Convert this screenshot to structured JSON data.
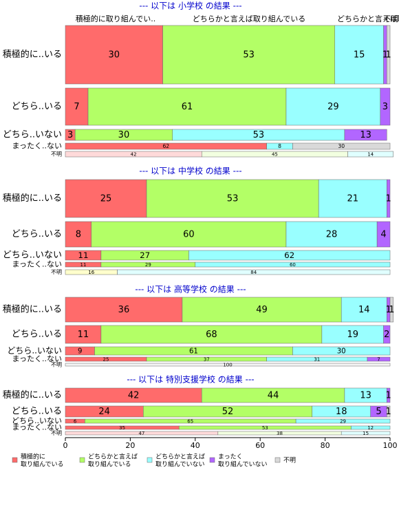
{
  "chart_data": {
    "type": "mosaic",
    "top_labels": [
      "積極的に取り組んでい..",
      "どちらかと言えば取り組んでいる",
      "どちらかと言えば取り組んでいない",
      "不明"
    ],
    "xlim": [
      0,
      100
    ],
    "xticks": [
      0,
      20,
      40,
      60,
      80,
      100
    ],
    "legend": [
      {
        "lines": [
          "積極的に",
          "取り組んでいる"
        ],
        "color": "#ff6b6b"
      },
      {
        "lines": [
          "どちらかと言えば",
          "取り組んでいる"
        ],
        "color": "#b3ff66"
      },
      {
        "lines": [
          "どちらかと言えば",
          "取り組んでいない"
        ],
        "color": "#99ffff"
      },
      {
        "lines": [
          "まったく",
          "取り組んでいない"
        ],
        "color": "#b266ff"
      },
      {
        "lines": [
          "不明"
        ],
        "color": "#d9d9d9"
      }
    ],
    "panels": [
      {
        "title": "--- 以下は 小学校 の結果 ---",
        "rows": [
          {
            "label": "積極的に..いる",
            "values": [
              30,
              53,
              15,
              1,
              1
            ],
            "colors": [
              "#ff6b6b",
              "#b3ff66",
              "#99ffff",
              "#b266ff",
              "#d9d9d9"
            ]
          },
          {
            "label": "どちら..いる",
            "values": [
              7,
              61,
              29,
              3
            ],
            "colors": [
              "#ff6b6b",
              "#b3ff66",
              "#99ffff",
              "#b266ff"
            ]
          },
          {
            "label": "どちら..いない",
            "values": [
              3,
              30,
              53,
              13
            ],
            "colors": [
              "#ff6b6b",
              "#b3ff66",
              "#99ffff",
              "#b266ff"
            ]
          },
          {
            "label": "まったく..ない",
            "values": [
              62,
              8,
              30
            ],
            "colors": [
              "#ff6b6b",
              "#99ffff",
              "#d9d9d9"
            ]
          },
          {
            "label": "不明",
            "values": [
              42,
              45,
              14
            ],
            "colors": [
              "#ffdada",
              "#f2ffe0",
              "#e0ffff"
            ]
          }
        ]
      },
      {
        "title": "--- 以下は 中学校 の結果 ---",
        "rows": [
          {
            "label": "積極的に..いる",
            "values": [
              25,
              53,
              21,
              1
            ],
            "colors": [
              "#ff6b6b",
              "#b3ff66",
              "#99ffff",
              "#b266ff"
            ]
          },
          {
            "label": "どちら..いる",
            "values": [
              8,
              60,
              28,
              4
            ],
            "colors": [
              "#ff6b6b",
              "#b3ff66",
              "#99ffff",
              "#b266ff"
            ]
          },
          {
            "label": "どちら..いない",
            "values": [
              11,
              27,
              62
            ],
            "colors": [
              "#ff6b6b",
              "#b3ff66",
              "#99ffff"
            ]
          },
          {
            "label": "まったく..ない",
            "values": [
              11,
              29,
              60
            ],
            "colors": [
              "#ff6b6b",
              "#b3ff66",
              "#99ffff"
            ]
          },
          {
            "label": "不明",
            "values": [
              16,
              84
            ],
            "colors": [
              "#ffffcc",
              "#e0ffff"
            ]
          }
        ]
      },
      {
        "title": "--- 以下は 高等学校 の結果 ---",
        "rows": [
          {
            "label": "積極的に..いる",
            "values": [
              36,
              49,
              14,
              1,
              1
            ],
            "colors": [
              "#ff6b6b",
              "#b3ff66",
              "#99ffff",
              "#b266ff",
              "#d9d9d9"
            ]
          },
          {
            "label": "どちら..いる",
            "values": [
              11,
              68,
              19,
              2
            ],
            "colors": [
              "#ff6b6b",
              "#b3ff66",
              "#99ffff",
              "#b266ff"
            ]
          },
          {
            "label": "どちら..いない",
            "values": [
              9,
              61,
              30
            ],
            "colors": [
              "#ff6b6b",
              "#b3ff66",
              "#99ffff"
            ]
          },
          {
            "label": "まったく..ない",
            "values": [
              25,
              37,
              31,
              7
            ],
            "colors": [
              "#ff6b6b",
              "#b3ff66",
              "#99ffff",
              "#b266ff"
            ]
          },
          {
            "label": "不明",
            "values": [
              100
            ],
            "colors": [
              "#f4f4f4"
            ]
          }
        ]
      },
      {
        "title": "--- 以下は 特別支援学校 の結果 ---",
        "rows": [
          {
            "label": "積極的に..いる",
            "values": [
              42,
              44,
              13,
              1
            ],
            "colors": [
              "#ff6b6b",
              "#b3ff66",
              "#99ffff",
              "#b266ff"
            ]
          },
          {
            "label": "どちら..いる",
            "values": [
              24,
              52,
              18,
              5,
              1
            ],
            "colors": [
              "#ff6b6b",
              "#b3ff66",
              "#99ffff",
              "#b266ff",
              "#d9d9d9"
            ]
          },
          {
            "label": "どちら..いない",
            "values": [
              6,
              65,
              29
            ],
            "colors": [
              "#ff6b6b",
              "#b3ff66",
              "#99ffff"
            ]
          },
          {
            "label": "まったく..ない",
            "values": [
              35,
              53,
              12
            ],
            "colors": [
              "#ff6b6b",
              "#b3ff66",
              "#99ffff"
            ]
          },
          {
            "label": "不明",
            "values": [
              47,
              38,
              15
            ],
            "colors": [
              "#ffdada",
              "#f2ffe0",
              "#e0ffff"
            ]
          }
        ]
      }
    ]
  }
}
